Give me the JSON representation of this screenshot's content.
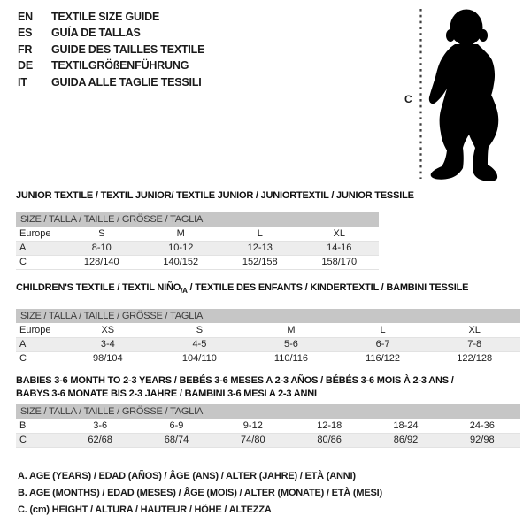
{
  "colors": {
    "background": "#ffffff",
    "table_header_bg": "#c6c6c6",
    "row_stripe_bg": "#ededed",
    "text": "#1b1b1b",
    "silhouette": "#000000"
  },
  "language_guide": {
    "items": [
      {
        "code": "EN",
        "label": "TEXTILE SIZE GUIDE"
      },
      {
        "code": "ES",
        "label": "GUÍA DE TALLAS"
      },
      {
        "code": "FR",
        "label": "GUIDE DES TAILLES TEXTILE"
      },
      {
        "code": "DE",
        "label": "TEXTILGRÖßENFÜHRUNG"
      },
      {
        "code": "IT",
        "label": "GUIDA ALLE TAGLIE TESSILI"
      }
    ]
  },
  "figure": {
    "height_label": "C",
    "silhouette": "baby-toddler-standing"
  },
  "tables": {
    "junior": {
      "title": "JUNIOR TEXTILE / TEXTIL JUNIOR/ TEXTILE JUNIOR / JUNIORTEXTIL / JUNIOR TESSILE",
      "size_header": "SIZE / TALLA / TAILLE / GRÖSSE / TAGLIA",
      "rows": [
        [
          "Europe",
          "S",
          "M",
          "L",
          "XL"
        ],
        [
          "A",
          "8-10",
          "10-12",
          "12-13",
          "14-16"
        ],
        [
          "C",
          "128/140",
          "140/152",
          "152/158",
          "158/170"
        ]
      ]
    },
    "children": {
      "title_main": "CHILDREN'S TEXTILE / TEXTIL NIÑO",
      "title_subscript": "/A",
      "title_rest": " / TEXTILE DES ENFANTS / KINDERTEXTIL / BAMBINI TESSILE",
      "size_header": "SIZE / TALLA / TAILLE / GRÖSSE / TAGLIA",
      "rows": [
        [
          "Europe",
          "XS",
          "S",
          "M",
          "L",
          "XL"
        ],
        [
          "A",
          "3-4",
          "4-5",
          "5-6",
          "6-7",
          "7-8"
        ],
        [
          "C",
          "98/104",
          "104/110",
          "110/116",
          "116/122",
          "122/128"
        ]
      ]
    },
    "babies": {
      "title_line1": "BABIES 3-6 MONTH TO 2-3 YEARS / BEBÉS 3-6 MESES A 2-3 AÑOS / BÉBÉS 3-6 MOIS À 2-3 ANS /",
      "title_line2": "BABYS 3-6 MONATE BIS 2-3 JAHRE / BAMBINI 3-6 MESI A 2-3 ANNI",
      "size_header": "SIZE / TALLA / TAILLE / GRÖSSE / TAGLIA",
      "rows": [
        [
          "B",
          "3-6",
          "6-9",
          "9-12",
          "12-18",
          "18-24",
          "24-36"
        ],
        [
          "C",
          "62/68",
          "68/74",
          "74/80",
          "80/86",
          "86/92",
          "92/98"
        ]
      ]
    }
  },
  "footnotes": [
    "A. AGE (YEARS) / EDAD (AÑOS) / ÂGE (ANS) / ALTER (JAHRE) / ETÀ (ANNI)",
    "B. AGE (MONTHS) / EDAD (MESES) / ÂGE (MOIS) / ALTER (MONATE) / ETÀ (MESI)",
    "C. (cm) HEIGHT / ALTURA / HAUTEUR / HÖHE / ALTEZZA"
  ]
}
